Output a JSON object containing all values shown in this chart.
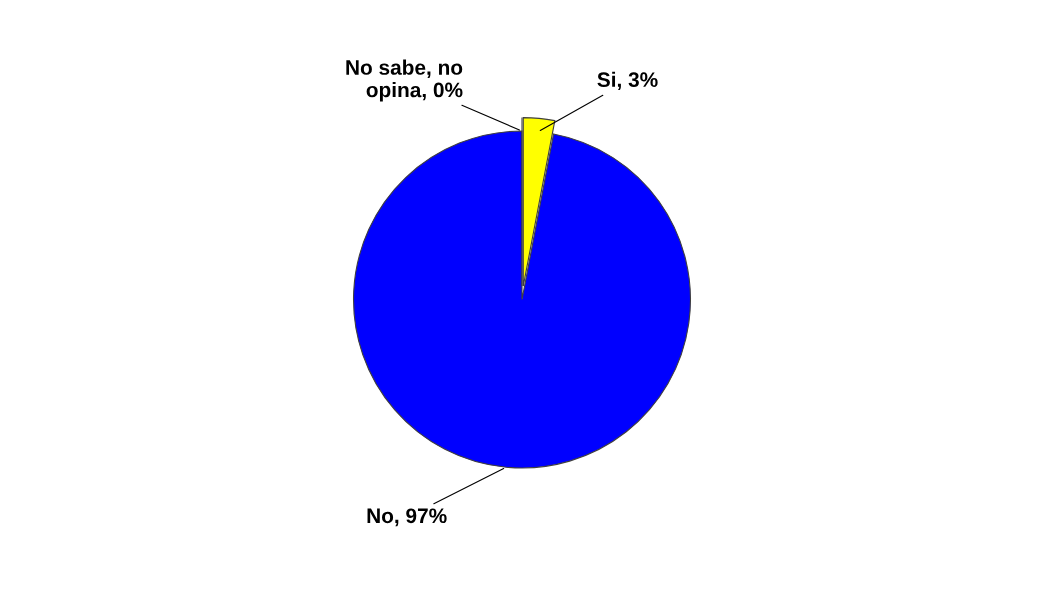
{
  "chart_data": {
    "type": "pie",
    "categories": [
      "Si, 3%",
      "No, 97%",
      "No sabe, no opina, 0%"
    ],
    "values": [
      3,
      97,
      0
    ],
    "colors": [
      "#ffff00",
      "#0000ff",
      "#c0c0c0"
    ]
  }
}
